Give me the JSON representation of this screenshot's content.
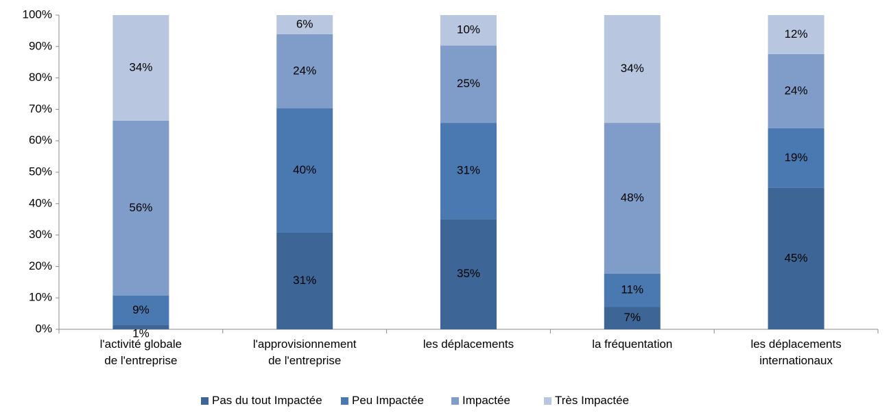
{
  "chart_data": {
    "type": "stacked_bar",
    "categories": [
      "l'activité globale\nde l'entreprise",
      "l'approvisionnement\nde l'entreprise",
      "les déplacements",
      "la fréquentation",
      "les déplacements\ninternationaux"
    ],
    "series": [
      {
        "name": "Pas du tout Impactée",
        "color": "#3d6596",
        "values": [
          1.4,
          30.8,
          35.1,
          7.1,
          45.0
        ],
        "value_labels": [
          "1%",
          "31%",
          "35%",
          "7%",
          "45%"
        ]
      },
      {
        "name": "Peu Impactée",
        "color": "#4a78b0",
        "values": [
          9.3,
          39.5,
          30.6,
          10.6,
          19.0
        ],
        "value_labels": [
          "9%",
          "40%",
          "31%",
          "11%",
          "19%"
        ]
      },
      {
        "name": "Impactée",
        "color": "#7f9dc8",
        "values": [
          55.7,
          23.6,
          24.6,
          48.0,
          23.6
        ],
        "value_labels": [
          "56%",
          "24%",
          "25%",
          "48%",
          "24%"
        ]
      },
      {
        "name": "Très Impactée",
        "color": "#b8c6e0",
        "values": [
          33.6,
          6.1,
          9.7,
          34.3,
          12.4
        ],
        "value_labels": [
          "34%",
          "6%",
          "10%",
          "34%",
          "12%"
        ]
      }
    ],
    "ylim": [
      0,
      100
    ],
    "yticks": [
      {
        "value": 0,
        "label": "0%"
      },
      {
        "value": 10,
        "label": "10%"
      },
      {
        "value": 20,
        "label": "20%"
      },
      {
        "value": 30,
        "label": "30%"
      },
      {
        "value": 40,
        "label": "40%"
      },
      {
        "value": 50,
        "label": "50%"
      },
      {
        "value": 60,
        "label": "60%"
      },
      {
        "value": 70,
        "label": "70%"
      },
      {
        "value": 80,
        "label": "80%"
      },
      {
        "value": 90,
        "label": "90%"
      },
      {
        "value": 100,
        "label": "100%"
      }
    ],
    "legend": "bottom"
  }
}
